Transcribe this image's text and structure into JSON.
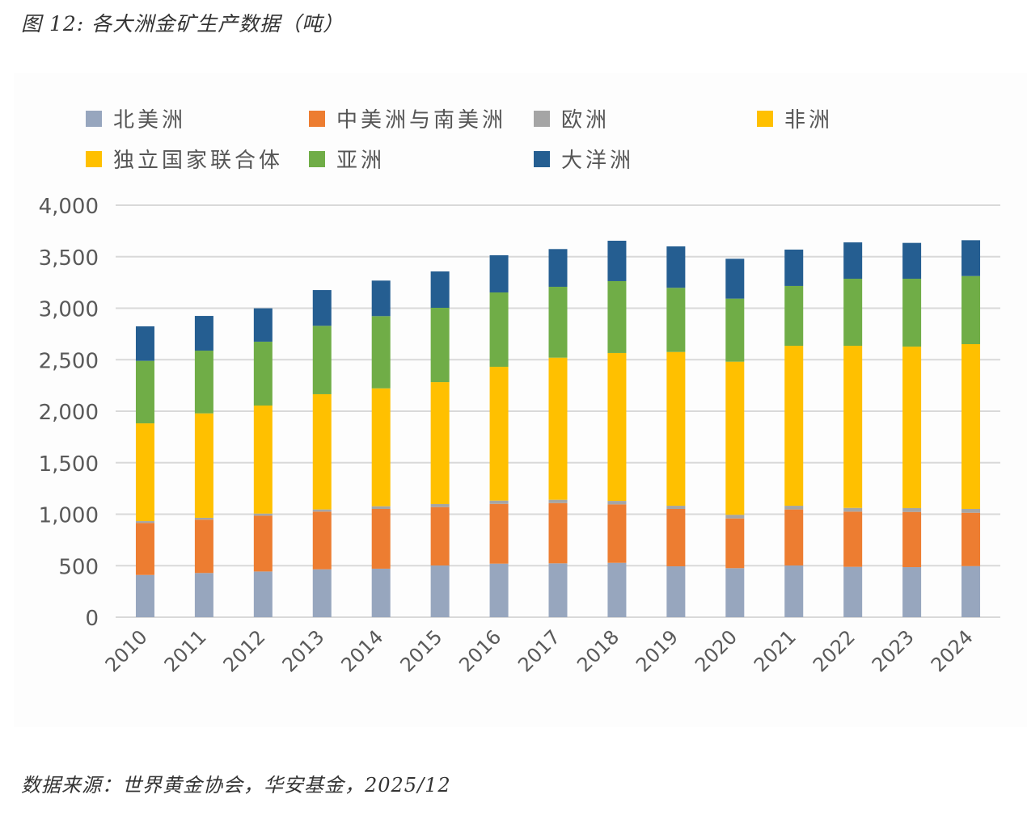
{
  "figure": {
    "title": "图 12: 各大洲金矿生产数据（吨）",
    "source": "数据来源：世界黄金协会，华安基金，2025/12"
  },
  "legend": [
    {
      "label": "北美洲",
      "color": "#97A6BE"
    },
    {
      "label": "中美洲与南美洲",
      "color": "#ED7D31"
    },
    {
      "label": "欧洲",
      "color": "#A5A5A5"
    },
    {
      "label": "非洲",
      "color": "#FFC000"
    },
    {
      "label": "独立国家联合体",
      "color": "#FFC000"
    },
    {
      "label": "亚洲",
      "color": "#70AD47"
    },
    {
      "label": "大洋洲",
      "color": "#255E91"
    }
  ],
  "chart_data": {
    "type": "bar",
    "stacked": true,
    "title": "各大洲金矿生产数据（吨）",
    "xlabel": "",
    "ylabel": "",
    "ylim": [
      0,
      4000
    ],
    "yticks": [
      0,
      500,
      1000,
      1500,
      2000,
      2500,
      3000,
      3500,
      4000
    ],
    "ytick_labels": [
      "0",
      "500",
      "1,000",
      "1,500",
      "2,000",
      "2,500",
      "3,000",
      "3,500",
      "4,000"
    ],
    "grid": true,
    "legend_position": "top",
    "categories": [
      "2010",
      "2011",
      "2012",
      "2013",
      "2014",
      "2015",
      "2016",
      "2017",
      "2018",
      "2019",
      "2020",
      "2021",
      "2022",
      "2023",
      "2024"
    ],
    "series": [
      {
        "name": "北美洲",
        "color": "#97A6BE",
        "values": [
          410,
          429,
          444,
          465,
          471,
          502,
          520,
          523,
          528,
          494,
          476,
          502,
          489,
          486,
          496
        ]
      },
      {
        "name": "中美洲与南美洲",
        "color": "#ED7D31",
        "values": [
          505,
          518,
          541,
          560,
          580,
          567,
          580,
          585,
          567,
          557,
          483,
          544,
          536,
          536,
          518
        ]
      },
      {
        "name": "欧洲",
        "color": "#A5A5A5",
        "values": [
          18,
          18,
          21,
          21,
          26,
          29,
          32,
          32,
          34,
          31,
          35,
          36,
          36,
          37,
          37
        ]
      },
      {
        "name": "非洲 + 独立国家联合体",
        "color": "#FFC000",
        "values": [
          949,
          1014,
          1049,
          1119,
          1145,
          1184,
          1299,
          1380,
          1436,
          1493,
          1487,
          1553,
          1574,
          1568,
          1600
        ]
      },
      {
        "name": "亚洲",
        "color": "#70AD47",
        "values": [
          607,
          609,
          620,
          664,
          701,
          722,
          722,
          688,
          698,
          623,
          612,
          581,
          651,
          659,
          661
        ]
      },
      {
        "name": "大洋洲",
        "color": "#255E91",
        "values": [
          335,
          337,
          324,
          347,
          345,
          353,
          361,
          366,
          392,
          402,
          387,
          353,
          353,
          348,
          348
        ]
      }
    ],
    "gridline_color": "#D9D9D9"
  }
}
